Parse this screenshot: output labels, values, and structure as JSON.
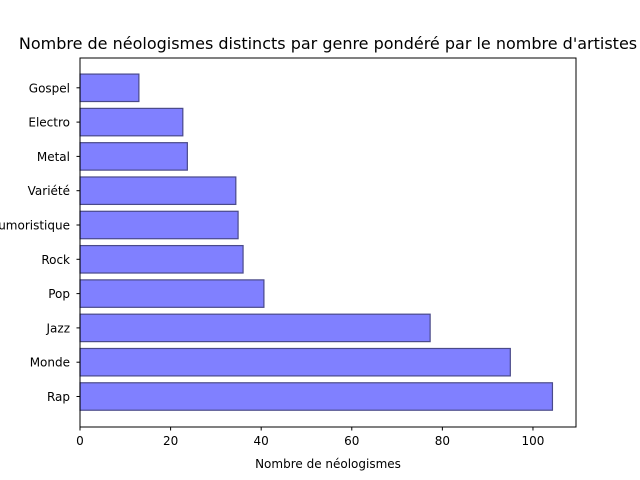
{
  "chart_data": {
    "type": "bar",
    "orientation": "horizontal",
    "title": "Nombre de néologismes distincts par genre pondéré par le nombre d'artistes",
    "xlabel": "Nombre de néologismes",
    "ylabel": "",
    "xlim": [
      0,
      109.5
    ],
    "xticks": [
      0,
      20,
      40,
      60,
      80,
      100
    ],
    "grid": false,
    "categories": [
      "Rap",
      "Monde",
      "Jazz",
      "Pop",
      "Rock",
      "Humoristique",
      "Variété",
      "Metal",
      "Electro",
      "Gospel"
    ],
    "values": [
      104.3,
      95.0,
      77.3,
      40.6,
      36.0,
      34.9,
      34.4,
      23.7,
      22.7,
      13.0
    ],
    "bar_color": "#8080ff",
    "edge_color": "#4a4a8a"
  }
}
